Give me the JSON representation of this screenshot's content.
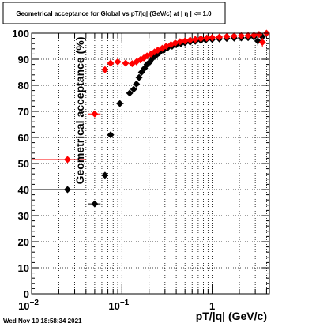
{
  "chart_data": {
    "type": "scatter",
    "title": "Geometrical acceptance for Global vs pT/|q| (GeV/c) at |  η  | <= 1.0",
    "xlabel": "pT/|q| (GeV/c)",
    "ylabel": "Geometrical acceptance (%)",
    "xscale": "log",
    "xlim": [
      0.01,
      4.3
    ],
    "ylim": [
      0,
      100
    ],
    "grid": true,
    "y_ticks": [
      "0",
      "10",
      "20",
      "30",
      "40",
      "50",
      "60",
      "70",
      "80",
      "90",
      "100"
    ],
    "x_ticks": [
      {
        "base": "10",
        "exp": "−2"
      },
      {
        "base": "10",
        "exp": "−1"
      },
      {
        "base": "1",
        "exp": ""
      }
    ],
    "series": [
      {
        "color": "#000000",
        "marker": "diamond",
        "points": [
          {
            "x": 0.025,
            "y": 40,
            "xerr": [
              0.01,
              0.04
            ]
          },
          {
            "x": 0.05,
            "y": 34.5,
            "xerr": [
              0.042,
              0.058
            ]
          },
          {
            "x": 0.065,
            "y": 45.5
          },
          {
            "x": 0.075,
            "y": 61
          },
          {
            "x": 0.095,
            "y": 73,
            "xerr": [
              0.087,
              0.105
            ]
          },
          {
            "x": 0.122,
            "y": 77
          },
          {
            "x": 0.135,
            "y": 78.5
          },
          {
            "x": 0.145,
            "y": 80.5
          },
          {
            "x": 0.155,
            "y": 83
          },
          {
            "x": 0.165,
            "y": 85
          },
          {
            "x": 0.178,
            "y": 86.5
          },
          {
            "x": 0.19,
            "y": 88
          },
          {
            "x": 0.205,
            "y": 89
          },
          {
            "x": 0.22,
            "y": 90.5
          },
          {
            "x": 0.24,
            "y": 91.5
          },
          {
            "x": 0.26,
            "y": 92.5
          },
          {
            "x": 0.29,
            "y": 93.5
          },
          {
            "x": 0.32,
            "y": 94.3
          },
          {
            "x": 0.36,
            "y": 95
          },
          {
            "x": 0.4,
            "y": 95.6
          },
          {
            "x": 0.45,
            "y": 96
          },
          {
            "x": 0.5,
            "y": 96.3
          },
          {
            "x": 0.57,
            "y": 96.6
          },
          {
            "x": 0.65,
            "y": 96.9
          },
          {
            "x": 0.75,
            "y": 97.2
          },
          {
            "x": 0.85,
            "y": 97.4
          },
          {
            "x": 1.0,
            "y": 97.6
          },
          {
            "x": 1.2,
            "y": 97.8
          },
          {
            "x": 1.45,
            "y": 98
          },
          {
            "x": 1.75,
            "y": 98.1
          },
          {
            "x": 2.1,
            "y": 98.2
          },
          {
            "x": 2.5,
            "y": 98.3
          },
          {
            "x": 2.9,
            "y": 98.5
          },
          {
            "x": 3.2,
            "y": 97,
            "yerr": [
              95.2,
              98.8
            ]
          },
          {
            "x": 3.6,
            "y": 98.6
          }
        ]
      },
      {
        "color": "#ff0000",
        "marker": "diamond",
        "points": [
          {
            "x": 0.025,
            "y": 51.5,
            "xerr": [
              0.01,
              0.04
            ]
          },
          {
            "x": 0.05,
            "y": 69,
            "xerr": [
              0.042,
              0.058
            ]
          },
          {
            "x": 0.065,
            "y": 86
          },
          {
            "x": 0.075,
            "y": 88.5
          },
          {
            "x": 0.09,
            "y": 89
          },
          {
            "x": 0.11,
            "y": 88.5
          },
          {
            "x": 0.13,
            "y": 88.3
          },
          {
            "x": 0.145,
            "y": 89
          },
          {
            "x": 0.16,
            "y": 89.8
          },
          {
            "x": 0.175,
            "y": 90.5
          },
          {
            "x": 0.19,
            "y": 91.3
          },
          {
            "x": 0.21,
            "y": 92
          },
          {
            "x": 0.23,
            "y": 92.8
          },
          {
            "x": 0.25,
            "y": 93.5
          },
          {
            "x": 0.28,
            "y": 94.2
          },
          {
            "x": 0.31,
            "y": 95
          },
          {
            "x": 0.35,
            "y": 95.6
          },
          {
            "x": 0.39,
            "y": 96.2
          },
          {
            "x": 0.44,
            "y": 96.7
          },
          {
            "x": 0.5,
            "y": 97
          },
          {
            "x": 0.57,
            "y": 97.3
          },
          {
            "x": 0.65,
            "y": 97.6
          },
          {
            "x": 0.75,
            "y": 97.9
          },
          {
            "x": 0.87,
            "y": 98.1
          },
          {
            "x": 1.0,
            "y": 98.3
          },
          {
            "x": 1.2,
            "y": 98.5
          },
          {
            "x": 1.45,
            "y": 98.7
          },
          {
            "x": 1.75,
            "y": 98.9
          },
          {
            "x": 2.1,
            "y": 99
          },
          {
            "x": 2.5,
            "y": 99.1
          },
          {
            "x": 2.9,
            "y": 99.2
          },
          {
            "x": 3.3,
            "y": 99.5
          },
          {
            "x": 3.6,
            "y": 96.5,
            "yerr": [
              94.7,
              98.3
            ]
          },
          {
            "x": 4.0,
            "y": 100
          }
        ]
      }
    ]
  },
  "footer": {
    "date": "Wed Nov 10 18:58:34 2021"
  }
}
